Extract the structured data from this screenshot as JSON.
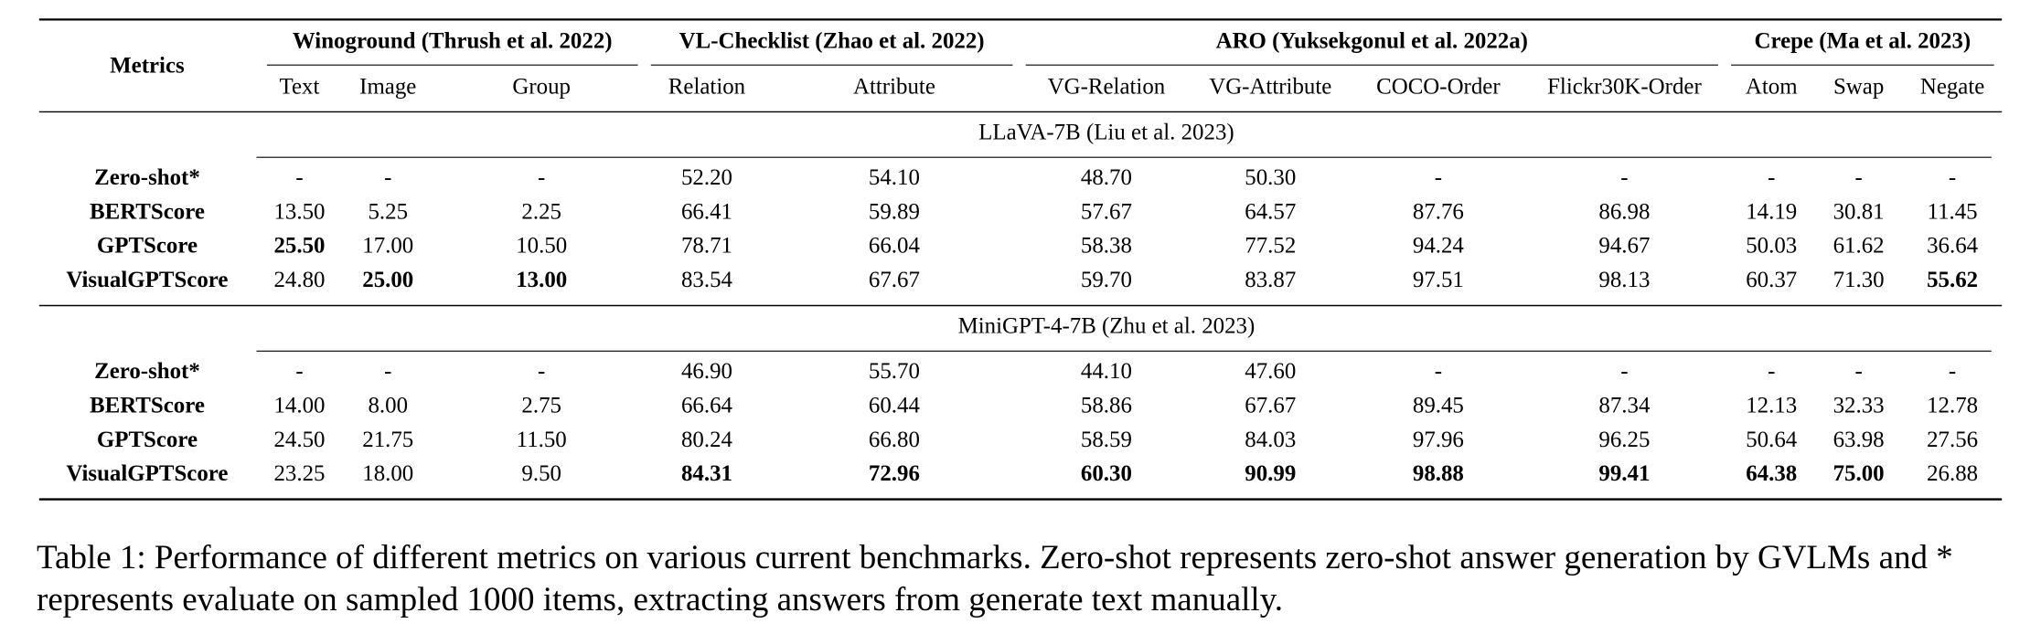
{
  "table": {
    "header": {
      "corner": "Metrics",
      "groups": [
        {
          "label": "Winoground (Thrush et al. 2022)",
          "columns": [
            "Text",
            "Image",
            "Group"
          ]
        },
        {
          "label": "VL-Checklist (Zhao et al. 2022)",
          "columns": [
            "Relation",
            "Attribute"
          ]
        },
        {
          "label": "ARO (Yuksekgonul et al. 2022a)",
          "columns": [
            "VG-Relation",
            "VG-Attribute",
            "COCO-Order",
            "Flickr30K-Order"
          ]
        },
        {
          "label": "Crepe (Ma et al. 2023)",
          "columns": [
            "Atom",
            "Swap",
            "Negate"
          ]
        }
      ]
    },
    "sections": [
      {
        "title": "LLaVA-7B (Liu et al. 2023)",
        "rows": [
          {
            "label": "Zero-shot*",
            "cells": [
              "-",
              "-",
              "-",
              "52.20",
              "54.10",
              "48.70",
              "50.30",
              "-",
              "-",
              "-",
              "-",
              "-"
            ],
            "bold": []
          },
          {
            "label": "BERTScore",
            "cells": [
              "13.50",
              "5.25",
              "2.25",
              "66.41",
              "59.89",
              "57.67",
              "64.57",
              "87.76",
              "86.98",
              "14.19",
              "30.81",
              "11.45"
            ],
            "bold": []
          },
          {
            "label": "GPTScore",
            "cells": [
              "25.50",
              "17.00",
              "10.50",
              "78.71",
              "66.04",
              "58.38",
              "77.52",
              "94.24",
              "94.67",
              "50.03",
              "61.62",
              "36.64"
            ],
            "bold": [
              0
            ]
          },
          {
            "label": "VisualGPTScore",
            "cells": [
              "24.80",
              "25.00",
              "13.00",
              "83.54",
              "67.67",
              "59.70",
              "83.87",
              "97.51",
              "98.13",
              "60.37",
              "71.30",
              "55.62"
            ],
            "bold": [
              1,
              2,
              11
            ]
          }
        ]
      },
      {
        "title": "MiniGPT-4-7B (Zhu et al. 2023)",
        "rows": [
          {
            "label": "Zero-shot*",
            "cells": [
              "-",
              "-",
              "-",
              "46.90",
              "55.70",
              "44.10",
              "47.60",
              "-",
              "-",
              "-",
              "-",
              "-"
            ],
            "bold": []
          },
          {
            "label": "BERTScore",
            "cells": [
              "14.00",
              "8.00",
              "2.75",
              "66.64",
              "60.44",
              "58.86",
              "67.67",
              "89.45",
              "87.34",
              "12.13",
              "32.33",
              "12.78"
            ],
            "bold": []
          },
          {
            "label": "GPTScore",
            "cells": [
              "24.50",
              "21.75",
              "11.50",
              "80.24",
              "66.80",
              "58.59",
              "84.03",
              "97.96",
              "96.25",
              "50.64",
              "63.98",
              "27.56"
            ],
            "bold": []
          },
          {
            "label": "VisualGPTScore",
            "cells": [
              "23.25",
              "18.00",
              "9.50",
              "84.31",
              "72.96",
              "60.30",
              "90.99",
              "98.88",
              "99.41",
              "64.38",
              "75.00",
              "26.88"
            ],
            "bold": [
              3,
              4,
              5,
              6,
              7,
              8,
              9,
              10
            ]
          }
        ]
      }
    ],
    "caption": "Table 1: Performance of different metrics on various current benchmarks. Zero-shot represents zero-shot answer generation by GVLMs and * represents evaluate on sampled 1000 items, extracting answers from generate text manually."
  }
}
